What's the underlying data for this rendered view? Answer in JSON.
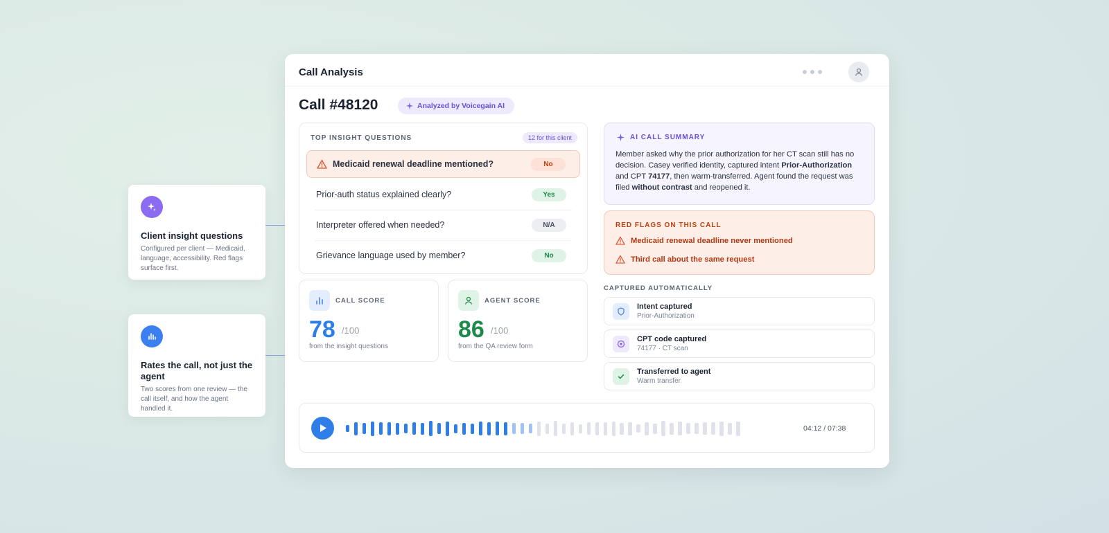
{
  "header": {
    "title": "Call Analysis"
  },
  "call": {
    "title": "Call #48120",
    "badge": "Analyzed by Voicegain AI"
  },
  "insights": {
    "title": "TOP INSIGHT QUESTIONS",
    "count": "12 for this client",
    "rows": [
      {
        "question": "Medicaid renewal deadline mentioned?",
        "answer": "No"
      },
      {
        "question": "Prior-auth status explained clearly?",
        "answer": "Yes"
      },
      {
        "question": "Interpreter offered when needed?",
        "answer": "N/A"
      },
      {
        "question": "Grievance language used by member?",
        "answer": "No"
      }
    ]
  },
  "scores": [
    {
      "label": "CALL SCORE",
      "value": 78,
      "max": "/100",
      "note": "from the insight questions"
    },
    {
      "label": "AGENT SCORE",
      "value": 86,
      "max": "/100",
      "note": "from the QA review form"
    }
  ],
  "summary": {
    "title": "AI CALL SUMMARY",
    "parts": [
      {
        "text": "Member asked why the prior authorization for her CT scan still has no decision. Casey verified identity, captured intent "
      },
      {
        "text": "Prior-Authorization",
        "bold": true
      },
      {
        "text": " and CPT "
      },
      {
        "text": "74177",
        "bold": true
      },
      {
        "text": ", then warm-transferred. Agent found the request was filed "
      },
      {
        "text": "without contrast",
        "bold": true
      },
      {
        "text": " and reopened it."
      }
    ]
  },
  "red_flags": {
    "title": "RED FLAGS ON THIS CALL",
    "items": [
      "Medicaid renewal deadline never mentioned",
      "Third call about the same request"
    ]
  },
  "captured": {
    "title": "CAPTURED AUTOMATICALLY",
    "items": [
      {
        "title": "Intent captured",
        "detail": "Prior-Authorization"
      },
      {
        "title": "CPT code captured",
        "detail": "74177 · CT scan"
      },
      {
        "title": "Transferred to agent",
        "detail": "Warm transfer"
      }
    ]
  },
  "player": {
    "time": "04:12 / 07:38"
  },
  "callouts": [
    {
      "title": "Client insight questions",
      "text": "Configured per client — Medicaid, language, accessibility. Red flags surface first."
    },
    {
      "title": "Rates the call, not just the agent",
      "text": "Two scores from one review — the call itself, and how the agent handled it."
    }
  ]
}
